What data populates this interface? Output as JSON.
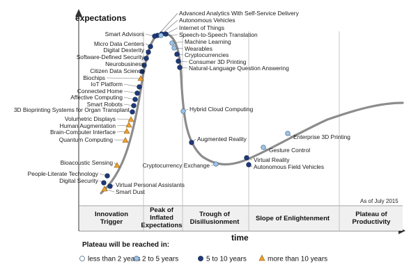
{
  "chart_data": {
    "type": "scatter",
    "title": "",
    "xlabel": "time",
    "ylabel": "expectations",
    "as_of": "As of July 2015",
    "phases": [
      "Innovation Trigger",
      "Peak of Inflated Expectations",
      "Trough of Disillusionment",
      "Slope of Enlightenment",
      "Plateau of Productivity"
    ],
    "legend": {
      "title": "Plateau will be reached in:",
      "entries": [
        {
          "key": "lt2",
          "label": "less than 2 years"
        },
        {
          "key": "2to5",
          "label": "2 to 5 years"
        },
        {
          "key": "5to10",
          "label": "5 to 10 years"
        },
        {
          "key": "gt10",
          "label": "more than 10 years"
        }
      ]
    },
    "colors": {
      "lt2": "#ffffff",
      "2to5": "#9cc3e6",
      "5to10": "#1f3a7a",
      "gt10": "#f0a030",
      "curve": "#8c8c8c"
    },
    "points": [
      {
        "label": "Advanced Analytics With Self-Service Delivery",
        "cat": "5to10",
        "side": "right"
      },
      {
        "label": "Autonomous Vehicles",
        "cat": "5to10",
        "side": "right"
      },
      {
        "label": "Internet of Things",
        "cat": "5to10",
        "side": "right"
      },
      {
        "label": "Speech-to-Speech Translation",
        "cat": "2to5",
        "side": "right"
      },
      {
        "label": "Machine Learning",
        "cat": "2to5",
        "side": "right"
      },
      {
        "label": "Wearables",
        "cat": "2to5",
        "side": "right"
      },
      {
        "label": "Cryptocurrencies",
        "cat": "5to10",
        "side": "right"
      },
      {
        "label": "Consumer 3D Printing",
        "cat": "5to10",
        "side": "right"
      },
      {
        "label": "Natural-Language Question Answering",
        "cat": "5to10",
        "side": "right"
      },
      {
        "label": "Smart Advisors",
        "cat": "5to10",
        "side": "left"
      },
      {
        "label": "Micro Data Centers",
        "cat": "5to10",
        "side": "left"
      },
      {
        "label": "Digital Dexterity",
        "cat": "5to10",
        "side": "left"
      },
      {
        "label": "Software-Defined Security",
        "cat": "5to10",
        "side": "left"
      },
      {
        "label": "Neurobusiness",
        "cat": "5to10",
        "side": "left"
      },
      {
        "label": "Citizen Data Science",
        "cat": "5to10",
        "side": "left"
      },
      {
        "label": "Biochips",
        "cat": "gt10",
        "side": "left"
      },
      {
        "label": "IoT Platform",
        "cat": "5to10",
        "side": "left"
      },
      {
        "label": "Connected Home",
        "cat": "5to10",
        "side": "left"
      },
      {
        "label": "Affective Computing",
        "cat": "5to10",
        "side": "left"
      },
      {
        "label": "Smart Robots",
        "cat": "5to10",
        "side": "left"
      },
      {
        "label": "3D Bioprinting Systems for Organ Transplant",
        "cat": "5to10",
        "side": "left"
      },
      {
        "label": "Volumetric Displays",
        "cat": "gt10",
        "side": "left"
      },
      {
        "label": "Human Augmentation",
        "cat": "gt10",
        "side": "left"
      },
      {
        "label": "Brain-Computer Interface",
        "cat": "gt10",
        "side": "left"
      },
      {
        "label": "Quantum Computing",
        "cat": "gt10",
        "side": "left"
      },
      {
        "label": "Bioacoustic Sensing",
        "cat": "gt10",
        "side": "left"
      },
      {
        "label": "People-Literate Technology",
        "cat": "5to10",
        "side": "left"
      },
      {
        "label": "Digital Security",
        "cat": "5to10",
        "side": "left"
      },
      {
        "label": "Virtual Personal Assistants",
        "cat": "5to10",
        "side": "right"
      },
      {
        "label": "Smart Dust",
        "cat": "gt10",
        "side": "right"
      },
      {
        "label": "Hybrid Cloud Computing",
        "cat": "2to5",
        "side": "right"
      },
      {
        "label": "Augmented Reality",
        "cat": "5to10",
        "side": "right"
      },
      {
        "label": "Cryptocurrency Exchange",
        "cat": "2to5",
        "side": "left"
      },
      {
        "label": "Virtual Reality",
        "cat": "5to10",
        "side": "right"
      },
      {
        "label": "Autonomous Field Vehicles",
        "cat": "5to10",
        "side": "right"
      },
      {
        "label": "Gesture Control",
        "cat": "2to5",
        "side": "right"
      },
      {
        "label": "Enterprise 3D Printing",
        "cat": "2to5",
        "side": "right"
      }
    ]
  }
}
